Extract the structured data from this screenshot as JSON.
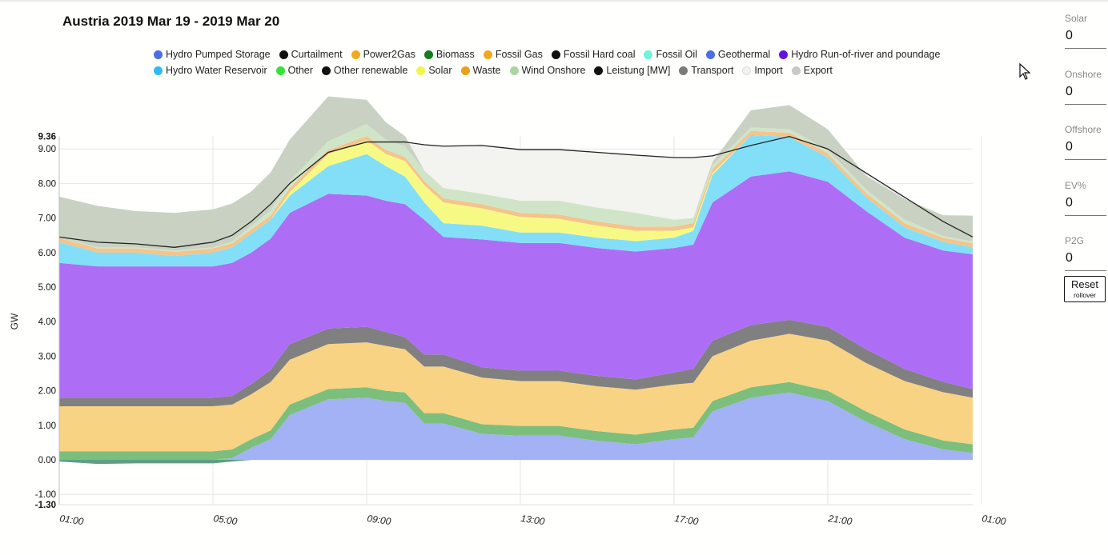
{
  "chart_data": {
    "type": "area",
    "title": "Austria 2019 Mar 19 - 2019 Mar 20",
    "ylabel": "GW",
    "ylim": [
      -1.3,
      9.36
    ],
    "ytick_values": [
      -1.3,
      -1,
      0,
      1,
      2,
      3,
      4,
      5,
      6,
      7,
      8,
      9,
      9.36
    ],
    "yticks": [
      "-1.30",
      "-1.00",
      "0.00",
      "1.00",
      "2.00",
      "3.00",
      "4.00",
      "5.00",
      "6.00",
      "7.00",
      "8.00",
      "9.00",
      "9.36"
    ],
    "xlim": [
      0,
      24
    ],
    "xtick_values": [
      0,
      4,
      8,
      12,
      16,
      20,
      24
    ],
    "xticks": [
      "01:00",
      "05:00",
      "09:00",
      "13:00",
      "17:00",
      "21:00",
      "01:00"
    ],
    "x": [
      0,
      1,
      2,
      3,
      4,
      4.5,
      5,
      5.5,
      6,
      7,
      8,
      8.5,
      9,
      9.5,
      10,
      11,
      12,
      13,
      14,
      15,
      16,
      16.5,
      17,
      18,
      19,
      20,
      21,
      22,
      23,
      24
    ],
    "series": [
      {
        "name": "Hydro Pumped Storage",
        "color": "#a3b1f5",
        "values": [
          0,
          0,
          0,
          0,
          0,
          0.05,
          0.35,
          0.6,
          1.3,
          1.75,
          1.8,
          1.7,
          1.65,
          1.05,
          1.05,
          0.75,
          0.7,
          0.7,
          0.55,
          0.45,
          0.6,
          0.65,
          1.4,
          1.8,
          1.95,
          1.7,
          1.1,
          0.6,
          0.3,
          0.2
        ]
      },
      {
        "name": "Biomass",
        "color": "#7cbf7c",
        "values": [
          0.25,
          0.25,
          0.25,
          0.25,
          0.25,
          0.25,
          0.25,
          0.25,
          0.3,
          0.3,
          0.3,
          0.3,
          0.3,
          0.3,
          0.3,
          0.28,
          0.28,
          0.28,
          0.28,
          0.28,
          0.28,
          0.28,
          0.3,
          0.3,
          0.3,
          0.3,
          0.3,
          0.28,
          0.26,
          0.25
        ]
      },
      {
        "name": "Fossil Gas",
        "color": "#f8d383",
        "values": [
          1.3,
          1.3,
          1.3,
          1.3,
          1.3,
          1.3,
          1.3,
          1.4,
          1.3,
          1.3,
          1.3,
          1.3,
          1.25,
          1.35,
          1.35,
          1.35,
          1.3,
          1.3,
          1.3,
          1.3,
          1.3,
          1.3,
          1.3,
          1.35,
          1.4,
          1.45,
          1.4,
          1.4,
          1.4,
          1.35
        ]
      },
      {
        "name": "Transport",
        "color": "#808080",
        "values": [
          0.25,
          0.25,
          0.25,
          0.25,
          0.25,
          0.25,
          0.3,
          0.35,
          0.45,
          0.45,
          0.45,
          0.4,
          0.35,
          0.35,
          0.35,
          0.3,
          0.3,
          0.3,
          0.3,
          0.3,
          0.35,
          0.4,
          0.45,
          0.45,
          0.4,
          0.4,
          0.4,
          0.35,
          0.3,
          0.25
        ]
      },
      {
        "name": "Hydro Run-of-river and poundage",
        "color": "#ad6ef5",
        "values": [
          3.9,
          3.8,
          3.8,
          3.8,
          3.8,
          3.85,
          3.8,
          3.8,
          3.8,
          3.9,
          3.8,
          3.8,
          3.85,
          3.9,
          3.4,
          3.7,
          3.7,
          3.7,
          3.7,
          3.7,
          3.6,
          3.6,
          4.0,
          4.3,
          4.3,
          4.2,
          4.0,
          3.8,
          3.8,
          3.9
        ]
      },
      {
        "name": "Hydro Water Reservoir",
        "color": "#83dff8",
        "values": [
          0.6,
          0.4,
          0.4,
          0.3,
          0.4,
          0.45,
          0.55,
          0.55,
          0.5,
          0.8,
          1.2,
          1.0,
          0.8,
          0.5,
          0.4,
          0.4,
          0.3,
          0.3,
          0.3,
          0.3,
          0.3,
          0.4,
          0.8,
          1.2,
          1.0,
          0.7,
          0.4,
          0.3,
          0.25,
          0.2
        ]
      },
      {
        "name": "Solar",
        "color": "#f6fa85",
        "values": [
          0,
          0,
          0,
          0,
          0,
          0,
          0,
          0,
          0.1,
          0.35,
          0.4,
          0.35,
          0.45,
          0.5,
          0.6,
          0.5,
          0.45,
          0.4,
          0.35,
          0.3,
          0.2,
          0.1,
          0.05,
          0,
          0,
          0,
          0,
          0,
          0,
          0
        ]
      },
      {
        "name": "Waste",
        "color": "#f4c48a",
        "values": [
          0.12,
          0.12,
          0.12,
          0.12,
          0.12,
          0.12,
          0.12,
          0.12,
          0.12,
          0.12,
          0.12,
          0.12,
          0.12,
          0.12,
          0.12,
          0.12,
          0.12,
          0.12,
          0.12,
          0.12,
          0.12,
          0.12,
          0.12,
          0.12,
          0.12,
          0.12,
          0.12,
          0.12,
          0.12,
          0.12
        ]
      },
      {
        "name": "Wind Onshore",
        "color": "#d0e5c8",
        "values": [
          0,
          0.03,
          0.03,
          0.03,
          0.03,
          0.05,
          0.1,
          0.15,
          0.2,
          0.25,
          0.35,
          0.3,
          0.3,
          0.3,
          0.3,
          0.3,
          0.35,
          0.4,
          0.4,
          0.4,
          0.2,
          0.15,
          0.1,
          0.1,
          0.1,
          0.1,
          0.1,
          0.1,
          0.05,
          0.05
        ]
      },
      {
        "name": "Export",
        "color": "#c9d2c2",
        "values": [
          1.2,
          1.2,
          1.05,
          1.1,
          1.1,
          1.1,
          1.0,
          1.1,
          1.2,
          1.3,
          0.7,
          0.5,
          0.3,
          0,
          0,
          0,
          0,
          0,
          0,
          0,
          0,
          0,
          0.1,
          0.5,
          0.7,
          0.6,
          0.4,
          0.6,
          0.6,
          0.75
        ]
      }
    ],
    "lines": [
      {
        "name": "Leistung [MW]",
        "color": "#222222",
        "values": [
          6.45,
          6.3,
          6.25,
          6.15,
          6.3,
          6.5,
          6.9,
          7.4,
          8.0,
          8.9,
          9.2,
          9.2,
          9.2,
          9.12,
          9.08,
          9.1,
          8.98,
          8.98,
          8.9,
          8.82,
          8.75,
          8.75,
          8.8,
          9.1,
          9.36,
          9.0,
          8.3,
          7.6,
          6.9,
          6.45
        ]
      },
      {
        "name": "Import",
        "color": "#f3f3ef",
        "values": [
          6.45,
          6.3,
          6.25,
          6.15,
          6.3,
          6.5,
          6.9,
          7.4,
          8.0,
          8.9,
          9.2,
          9.2,
          9.2,
          9.12,
          9.08,
          9.1,
          8.98,
          8.98,
          8.9,
          8.82,
          8.75,
          8.75,
          8.8,
          9.1,
          9.36,
          9.0,
          8.3,
          7.6,
          6.9,
          6.45
        ]
      }
    ],
    "negative_series": [
      {
        "name": "Hydro Pumped Storage (pumping)",
        "color": "#5f9e84",
        "values": [
          -0.05,
          -0.12,
          -0.1,
          -0.1,
          -0.1,
          -0.05,
          0,
          0,
          0,
          0,
          0,
          0,
          0,
          0,
          0,
          0,
          0,
          0,
          0,
          0,
          0,
          0,
          0,
          0,
          0,
          0,
          0,
          0,
          0,
          0
        ]
      }
    ],
    "legend": [
      {
        "label": "Hydro Pumped Storage",
        "color": "#4f6ce6"
      },
      {
        "label": "Curtailment",
        "color": "#111111"
      },
      {
        "label": "Power2Gas",
        "color": "#f2a91a"
      },
      {
        "label": "Biomass",
        "color": "#137d1c"
      },
      {
        "label": "Fossil Gas",
        "color": "#efa91e"
      },
      {
        "label": "Fossil Hard coal",
        "color": "#111111"
      },
      {
        "label": "Fossil Oil",
        "color": "#6cf5d6"
      },
      {
        "label": "Geothermal",
        "color": "#4a6fe6"
      },
      {
        "label": "Hydro Run-of-river and poundage",
        "color": "#6514e0"
      },
      {
        "label": "Hydro Water Reservoir",
        "color": "#2cbcf2"
      },
      {
        "label": "Other",
        "color": "#36e23a"
      },
      {
        "label": "Other renewable",
        "color": "#111111"
      },
      {
        "label": "Solar",
        "color": "#f1f64a"
      },
      {
        "label": "Waste",
        "color": "#e8a11d"
      },
      {
        "label": "Wind Onshore",
        "color": "#a9d6a4"
      },
      {
        "label": "Leistung [MW]",
        "color": "#111111"
      },
      {
        "label": "Transport",
        "color": "#7b7b7b"
      },
      {
        "label": "Import",
        "color": "#f2f2ee"
      },
      {
        "label": "Export",
        "color": "#c8c8c4"
      }
    ]
  },
  "controls": {
    "fields": [
      {
        "label": "Solar",
        "value": "0"
      },
      {
        "label": "Onshore",
        "value": "0"
      },
      {
        "label": "Offshore",
        "value": "0"
      },
      {
        "label": "EV%",
        "value": "0"
      },
      {
        "label": "P2G",
        "value": "0"
      }
    ],
    "reset_label": "Reset",
    "reset_sublabel": "rollover"
  }
}
